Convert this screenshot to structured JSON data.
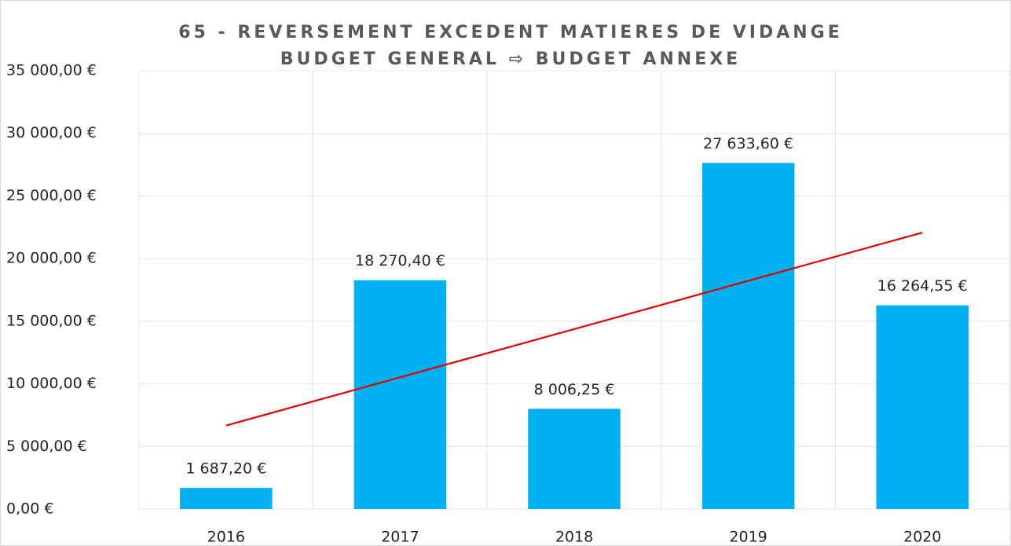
{
  "chart_data": {
    "type": "bar",
    "title": "65 - REVERSEMENT EXCEDENT MATIERES DE VIDANGE",
    "subtitle": "BUDGET GENERAL ⇨ BUDGET ANNEXE",
    "categories": [
      "2016",
      "2017",
      "2018",
      "2019",
      "2020"
    ],
    "values": [
      1687.2,
      18270.4,
      8006.25,
      27633.6,
      16264.55
    ],
    "value_labels": [
      "1 687,20 €",
      "18 270,40 €",
      "8 006,25 €",
      "27 633,60 €",
      "16 264,55 €"
    ],
    "color": "#00b0f0",
    "trendline": {
      "type": "linear",
      "color": "#e00000"
    },
    "ylim": [
      0,
      35000
    ],
    "yticks": [
      {
        "value": 0,
        "label": "0,00 €"
      },
      {
        "value": 5000,
        "label": "5 000,00 €"
      },
      {
        "value": 10000,
        "label": "10 000,00 €"
      },
      {
        "value": 15000,
        "label": "15 000,00 €"
      },
      {
        "value": 20000,
        "label": "20 000,00 €"
      },
      {
        "value": 25000,
        "label": "25 000,00 €"
      },
      {
        "value": 30000,
        "label": "30 000,00 €"
      },
      {
        "value": 35000,
        "label": "35 000,00 €"
      }
    ],
    "grid": true
  }
}
